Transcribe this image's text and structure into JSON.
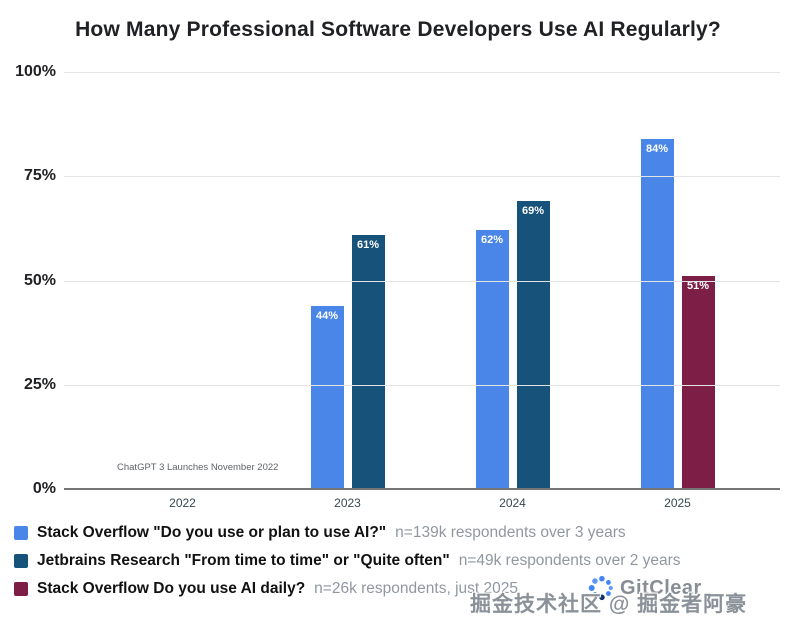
{
  "chart_data": {
    "type": "bar",
    "title": "How Many Professional Software Developers Use AI Regularly?",
    "categories": [
      "2022",
      "2023",
      "2024",
      "2025"
    ],
    "series": [
      {
        "name": "Stack Overflow \"Do you use or plan to use AI?\"",
        "color": "#4a86e8",
        "values": [
          null,
          44,
          62,
          84
        ]
      },
      {
        "name": "Jetbrains Research \"From time to time\" or \"Quite often\"",
        "color": "#17527b",
        "values": [
          null,
          61,
          69,
          null
        ]
      },
      {
        "name": "Stack Overflow Do you use AI daily?",
        "color": "#7c1e45",
        "values": [
          null,
          null,
          null,
          51
        ]
      }
    ],
    "ylim": [
      0,
      100
    ],
    "yticks": [
      "100%",
      "75%",
      "50%",
      "25%",
      "0%"
    ],
    "grid": "horizontal",
    "legend_position": "bottom-left",
    "annotation": "ChatGPT 3 Launches November 2022"
  },
  "legend": {
    "items": [
      {
        "label": "Stack Overflow \"Do you use or plan to use AI?\"",
        "note": "n=139k respondents over 3 years",
        "color": "#4a86e8"
      },
      {
        "label": "Jetbrains Research \"From time to time\" or \"Quite often\"",
        "note": "n=49k respondents over 2 years",
        "color": "#17527b"
      },
      {
        "label": "Stack Overflow Do you use AI daily?",
        "note": "n=26k respondents, just 2025",
        "color": "#7c1e45"
      }
    ]
  },
  "watermark": {
    "brand": "GitClear",
    "text": "掘金技术社区 @ 掘金者阿豪"
  }
}
